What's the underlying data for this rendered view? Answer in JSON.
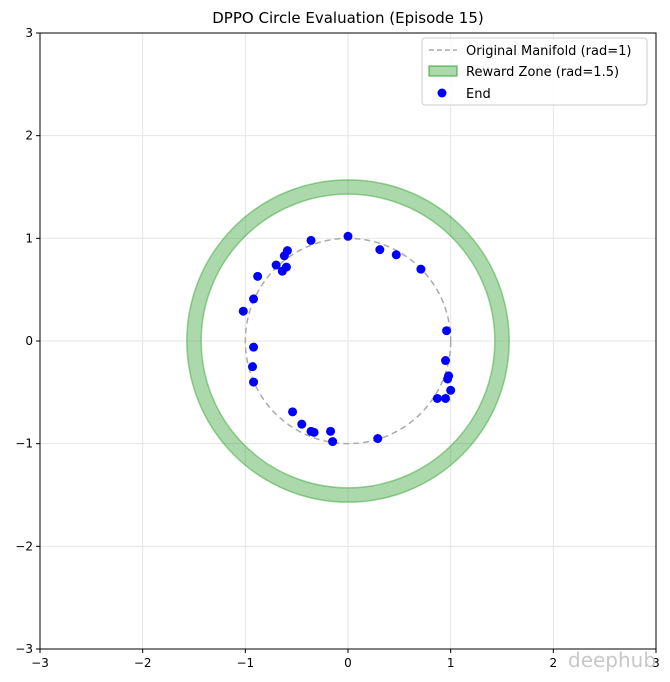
{
  "chart_data": {
    "type": "scatter",
    "title": "DPPO Circle Evaluation (Episode 15)",
    "xlabel": "",
    "ylabel": "",
    "xlim": [
      -3,
      3
    ],
    "ylim": [
      -3,
      3
    ],
    "xticks": [
      -3,
      -2,
      -1,
      0,
      1,
      2,
      3
    ],
    "yticks": [
      -3,
      -2,
      -1,
      0,
      1,
      2,
      3
    ],
    "grid": true,
    "legend_position": "top-right",
    "manifold": {
      "label": "Original Manifold (rad=1)",
      "radius": 1,
      "color": "#aaaaaa",
      "style": "dashed"
    },
    "reward_zone": {
      "label": "Reward Zone (rad=1.5)",
      "inner_radius": 1.43,
      "outer_radius": 1.57,
      "color": "#2ca02c"
    },
    "series": [
      {
        "name": "End",
        "color": "#0000ff",
        "points": [
          [
            0.0,
            1.02
          ],
          [
            0.31,
            0.89
          ],
          [
            0.47,
            0.84
          ],
          [
            0.71,
            0.7
          ],
          [
            0.96,
            0.1
          ],
          [
            0.95,
            -0.19
          ],
          [
            0.98,
            -0.34
          ],
          [
            0.97,
            -0.37
          ],
          [
            1.0,
            -0.48
          ],
          [
            0.95,
            -0.56
          ],
          [
            0.87,
            -0.56
          ],
          [
            0.29,
            -0.95
          ],
          [
            -0.15,
            -0.98
          ],
          [
            -0.17,
            -0.88
          ],
          [
            -0.33,
            -0.89
          ],
          [
            -0.36,
            -0.88
          ],
          [
            -0.45,
            -0.81
          ],
          [
            -0.54,
            -0.69
          ],
          [
            -0.92,
            -0.4
          ],
          [
            -0.93,
            -0.25
          ],
          [
            -0.92,
            -0.06
          ],
          [
            -1.02,
            0.29
          ],
          [
            -0.92,
            0.41
          ],
          [
            -0.88,
            0.63
          ],
          [
            -0.7,
            0.74
          ],
          [
            -0.64,
            0.68
          ],
          [
            -0.6,
            0.72
          ],
          [
            -0.59,
            0.88
          ],
          [
            -0.62,
            0.83
          ],
          [
            -0.36,
            0.98
          ]
        ]
      }
    ],
    "legend": [
      {
        "label": "Original Manifold (rad=1)",
        "kind": "dashed-line"
      },
      {
        "label": "Reward Zone (rad=1.5)",
        "kind": "patch"
      },
      {
        "label": "End",
        "kind": "marker"
      }
    ]
  },
  "watermark": "deephub"
}
